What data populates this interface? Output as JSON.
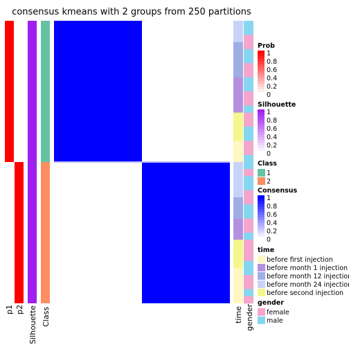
{
  "title": "consensus kmeans with 2 groups from 250 partitions",
  "columns": {
    "p1": "p1",
    "p2": "p2",
    "silhouette": "Silhouette",
    "class": "Class",
    "time": "time",
    "gender": "gender"
  },
  "colors": {
    "consensus": "#0000FF",
    "prob": "#FF0000",
    "silhouette": "#A020F0",
    "class1": "#66C2A5",
    "class2": "#FC8D62",
    "before_first_injection": "#FFF6C2",
    "before_month_1_injection": "#B491E0",
    "before_month_12_injection": "#9EAEE4",
    "before_month_24_injection": "#C7D3F6",
    "before_second_injection": "#F4F78A",
    "female": "#F4A6CC",
    "male": "#87D6F0"
  },
  "legends": {
    "prob": {
      "title": "Prob",
      "ticks": [
        "1",
        "0.8",
        "0.6",
        "0.4",
        "0.2",
        "0"
      ]
    },
    "silhouette": {
      "title": "Silhouette",
      "ticks": [
        "1",
        "0.8",
        "0.6",
        "0.4",
        "0.2",
        "0"
      ]
    },
    "class": {
      "title": "Class",
      "items": [
        "1",
        "2"
      ]
    },
    "consensus": {
      "title": "Consensus",
      "ticks": [
        "1",
        "0.8",
        "0.6",
        "0.4",
        "0.2",
        "0"
      ]
    },
    "time": {
      "title": "time",
      "items": [
        "before first injection",
        "before month 1 injection",
        "before month 12 injection",
        "before month 24 injection",
        "before second injection"
      ]
    },
    "gender": {
      "title": "gender",
      "items": [
        "female",
        "male"
      ]
    }
  },
  "chart_data": {
    "type": "heatmap",
    "title": "consensus kmeans with 2 groups from 250 partitions",
    "groups": [
      {
        "class": "1",
        "sample_count": 20
      },
      {
        "class": "2",
        "sample_count": 20
      }
    ],
    "consensus": [
      [
        1,
        0
      ],
      [
        0,
        1
      ]
    ],
    "p1": [
      1,
      0
    ],
    "p2": [
      0,
      1
    ],
    "silhouette": [
      1,
      1
    ],
    "time": [
      "before month 24 injection",
      "before month 24 injection",
      "before month 24 injection",
      "before month 12 injection",
      "before month 12 injection",
      "before month 12 injection",
      "before month 12 injection",
      "before month 12 injection",
      "before month 1 injection",
      "before month 1 injection",
      "before month 1 injection",
      "before month 1 injection",
      "before month 1 injection",
      "before second injection",
      "before second injection",
      "before second injection",
      "before second injection",
      "before first injection",
      "before first injection",
      "before first injection",
      "before month 24 injection",
      "before month 24 injection",
      "before month 24 injection",
      "before month 24 injection",
      "before month 24 injection",
      "before month 12 injection",
      "before month 12 injection",
      "before month 12 injection",
      "before month 1 injection",
      "before month 1 injection",
      "before month 1 injection",
      "before second injection",
      "before second injection",
      "before second injection",
      "before second injection",
      "before first injection",
      "before first injection",
      "before first injection",
      "before first injection",
      "before first injection"
    ],
    "gender": [
      "male",
      "male",
      "female",
      "female",
      "male",
      "male",
      "female",
      "female",
      "male",
      "male",
      "female",
      "female",
      "male",
      "female",
      "female",
      "male",
      "male",
      "female",
      "female",
      "male",
      "male",
      "female",
      "male",
      "male",
      "female",
      "female",
      "male",
      "male",
      "female",
      "female",
      "male",
      "female",
      "female",
      "female",
      "male",
      "male",
      "female",
      "female",
      "male",
      "female"
    ]
  }
}
